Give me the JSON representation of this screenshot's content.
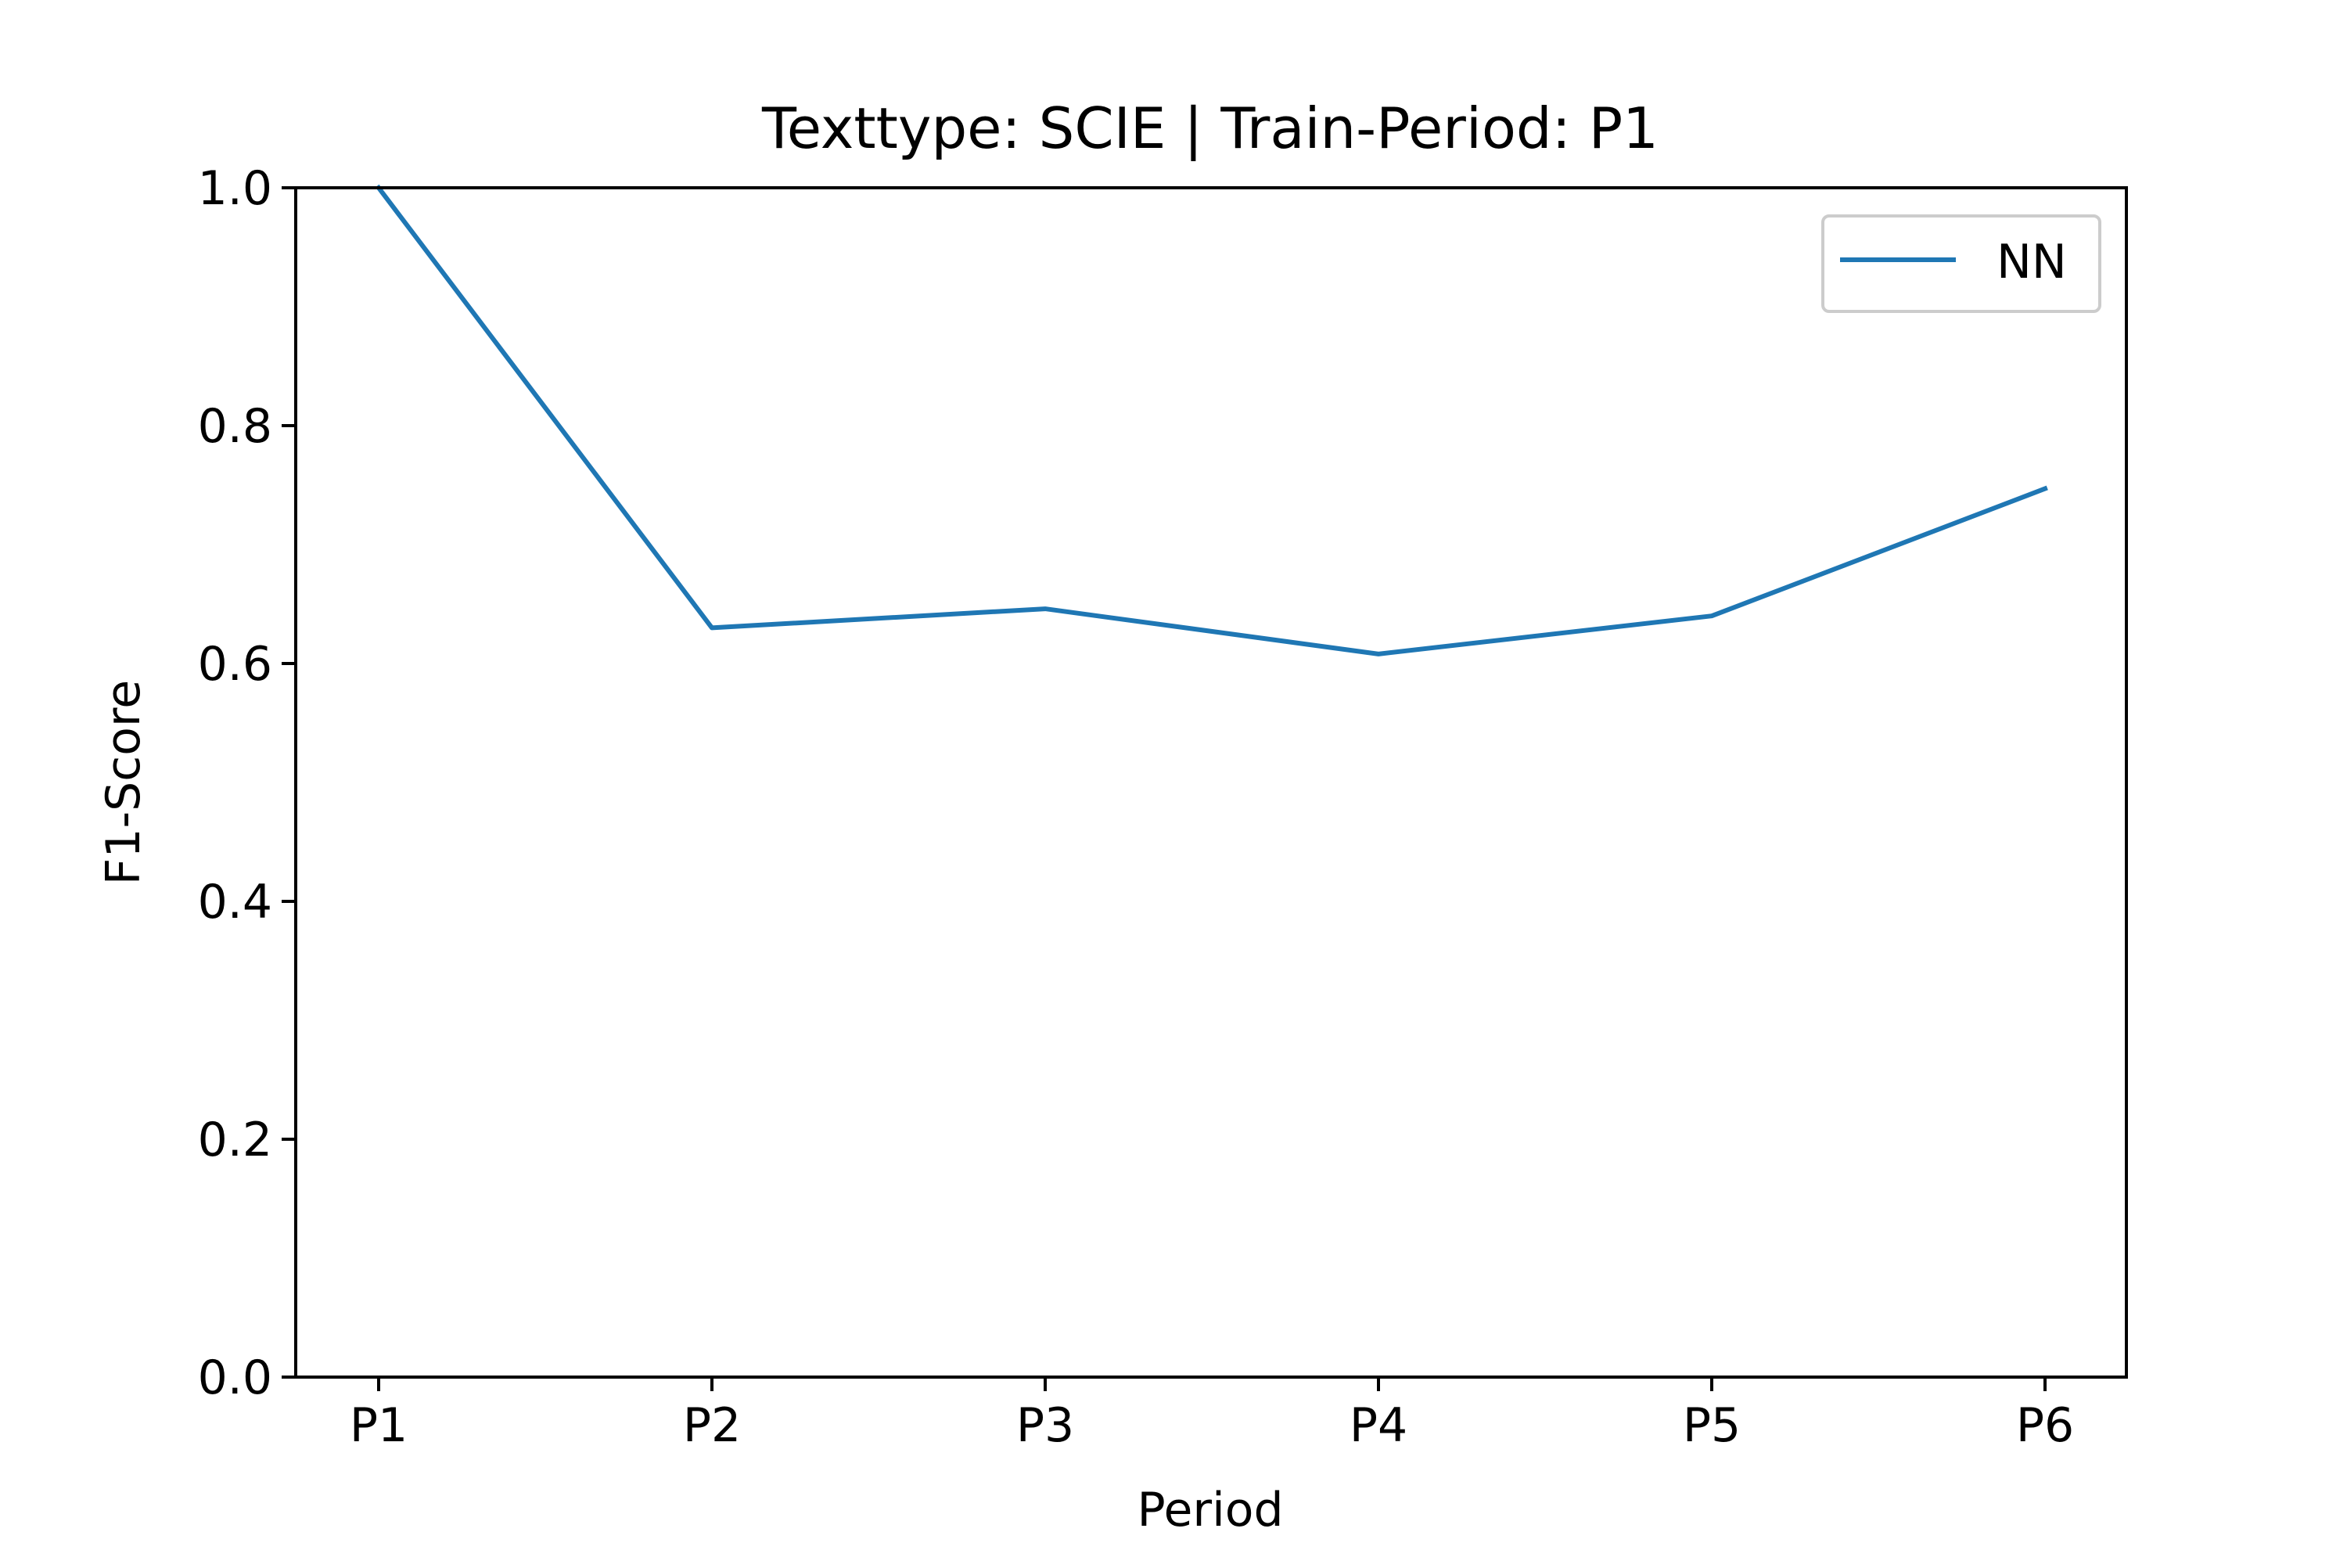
{
  "chart_data": {
    "type": "line",
    "title": "Texttype: SCIE | Train-Period: P1",
    "xlabel": "Period",
    "ylabel": "F1-Score",
    "categories": [
      "P1",
      "P2",
      "P3",
      "P4",
      "P5",
      "P6"
    ],
    "ylim": [
      0.0,
      1.0
    ],
    "yticks": [
      0.0,
      0.2,
      0.4,
      0.6,
      0.8,
      1.0
    ],
    "ytick_labels": [
      "0.0",
      "0.2",
      "0.4",
      "0.6",
      "0.8",
      "1.0"
    ],
    "grid": false,
    "legend_position": "top-right",
    "series": [
      {
        "name": "NN",
        "color": "#1f77b4",
        "values": [
          1.0,
          0.63,
          0.646,
          0.608,
          0.64,
          0.747
        ]
      }
    ]
  }
}
